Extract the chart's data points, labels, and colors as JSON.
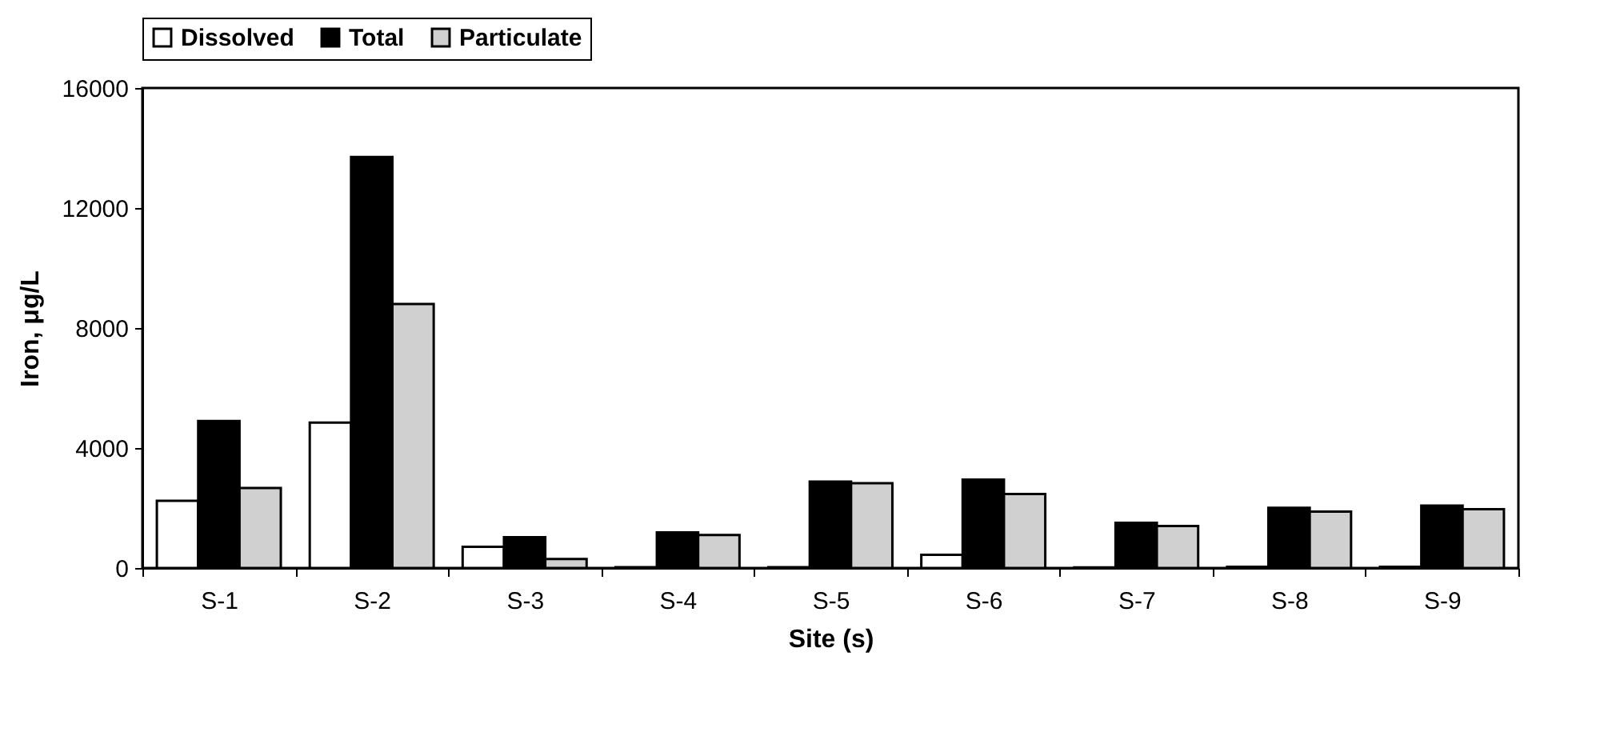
{
  "chart_data": {
    "type": "bar",
    "xlabel": "Site (s)",
    "ylabel": "Iron, μg/L",
    "categories": [
      "S-1",
      "S-2",
      "S-3",
      "S-4",
      "S-5",
      "S-6",
      "S-7",
      "S-8",
      "S-9"
    ],
    "series": [
      {
        "name": "Dissolved",
        "color": "#ffffff",
        "values": [
          2240,
          4850,
          710,
          30,
          30,
          440,
          20,
          40,
          40
        ]
      },
      {
        "name": "Total",
        "color": "#000000",
        "values": [
          4900,
          13700,
          1030,
          1190,
          2880,
          2950,
          1510,
          2010,
          2080
        ]
      },
      {
        "name": "Particulate",
        "color": "#d0d0d0",
        "values": [
          2670,
          8800,
          300,
          1100,
          2830,
          2470,
          1400,
          1880,
          1960
        ]
      }
    ],
    "ylim": [
      0,
      16000
    ],
    "yticks": [
      0,
      4000,
      8000,
      12000,
      16000
    ],
    "grid": false,
    "legend": "top"
  }
}
